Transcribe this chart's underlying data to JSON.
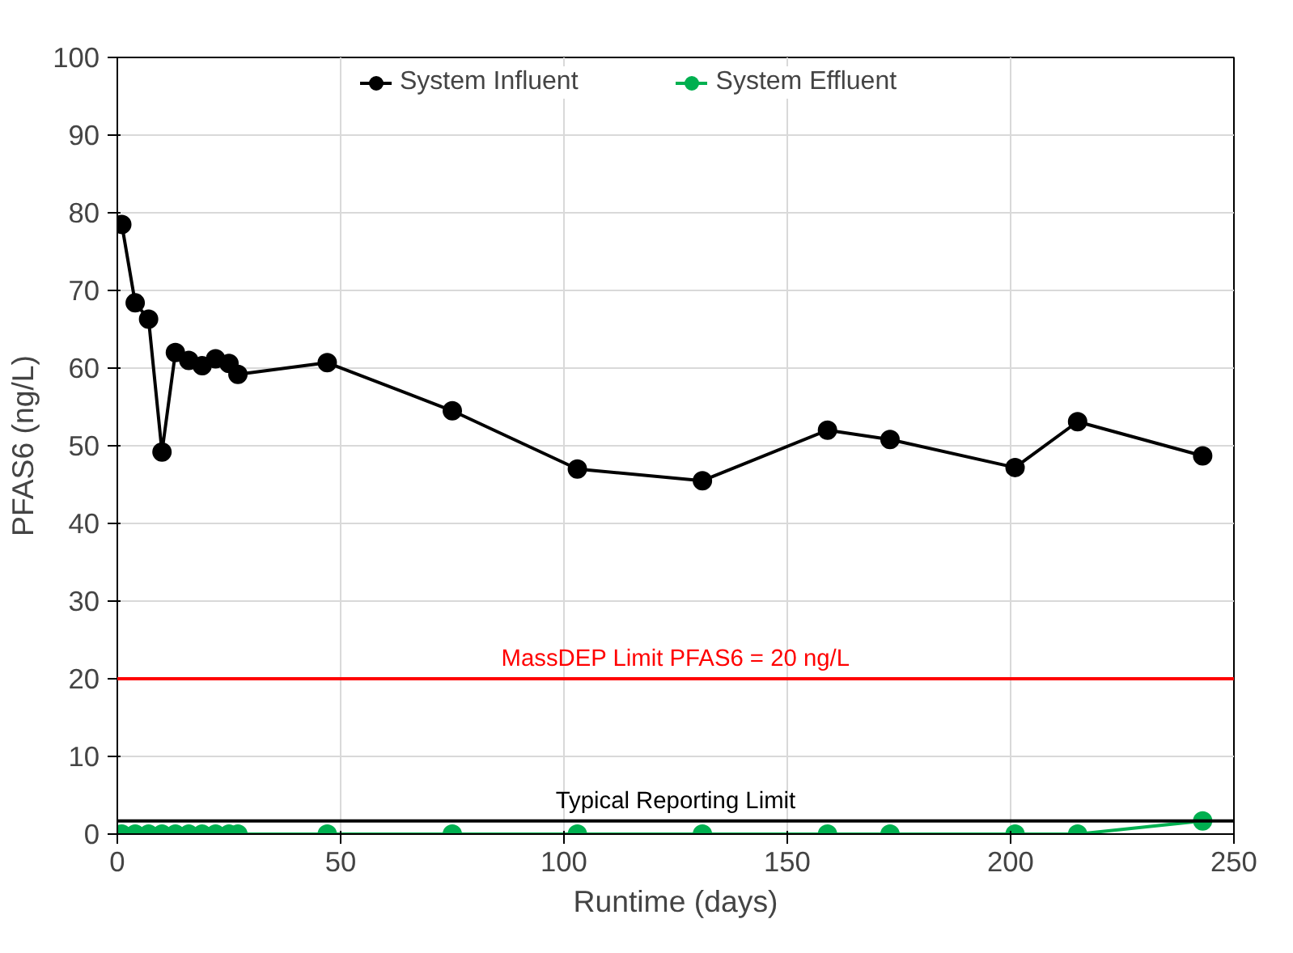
{
  "chart_data": {
    "type": "line",
    "xlabel": "Runtime (days)",
    "ylabel": "PFAS6 (ng/L)",
    "x": [
      1,
      4,
      7,
      10,
      13,
      16,
      19,
      22,
      25,
      27,
      47,
      75,
      103,
      131,
      159,
      173,
      201,
      215,
      243
    ],
    "series": [
      {
        "name": "System Influent",
        "color": "#000000",
        "values": [
          78.5,
          68.4,
          66.3,
          49.2,
          62,
          61,
          60.3,
          61.2,
          60.6,
          59.2,
          60.7,
          54.5,
          47,
          45.5,
          52,
          50.8,
          47.2,
          53.1,
          48.7
        ]
      },
      {
        "name": "System Effluent",
        "color": "#00b050",
        "values": [
          0,
          0,
          0,
          0,
          0,
          0,
          0,
          0,
          0,
          0,
          0,
          0,
          0,
          0,
          0,
          0,
          0,
          0,
          1.7
        ]
      }
    ],
    "xlim": [
      0,
      250
    ],
    "xticks": [
      0,
      50,
      100,
      150,
      200,
      250
    ],
    "ylim": [
      0,
      100
    ],
    "yticks": [
      0,
      10,
      20,
      30,
      40,
      50,
      60,
      70,
      80,
      90,
      100
    ],
    "ref_lines": [
      {
        "axis": "y",
        "value": 20,
        "label": "MassDEP Limit PFAS6 = 20 ng/L",
        "color": "#ff0000"
      },
      {
        "axis": "y",
        "value": 1.7,
        "label": "Typical Reporting Limit",
        "color": "#000000"
      }
    ],
    "grid": true,
    "legend": "top",
    "marker": "circle",
    "line_style": "solid"
  }
}
